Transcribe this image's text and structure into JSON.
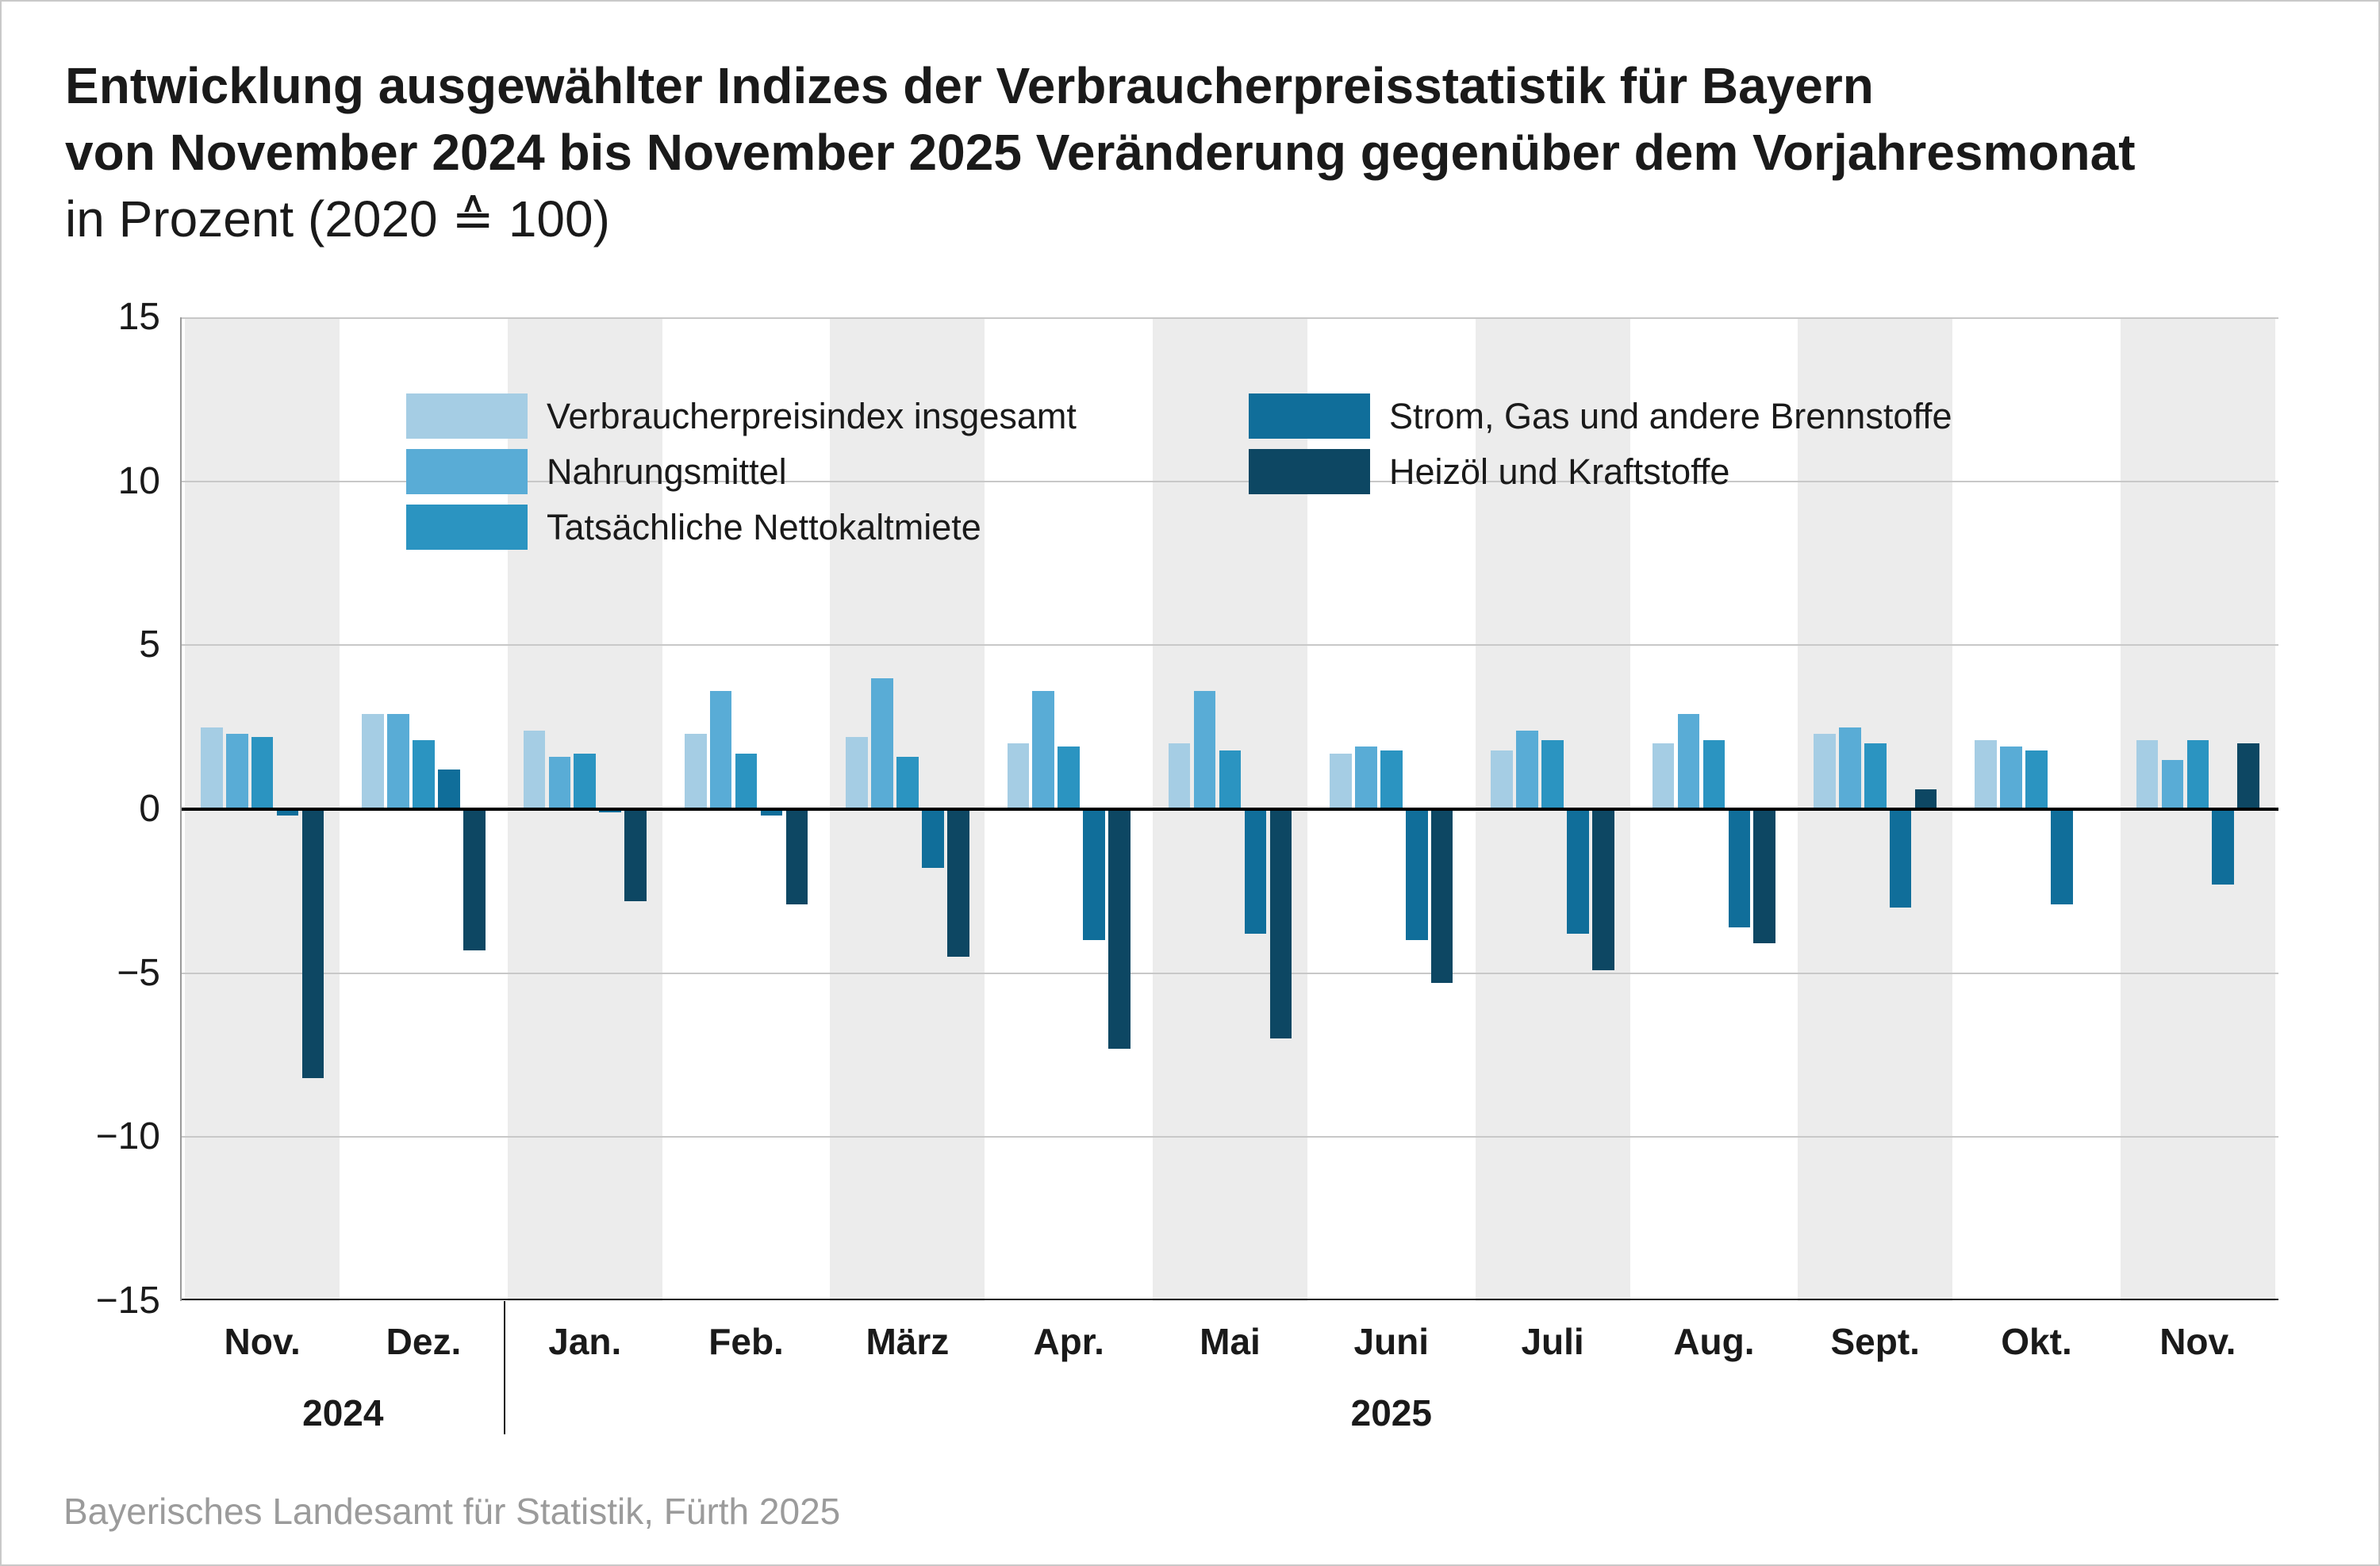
{
  "title": {
    "line1": "Entwicklung ausgewählter Indizes der Verbraucherpreisstatistik für Bayern",
    "line2": "von November 2024 bis November 2025 Veränderung gegenüber dem Vorjahresmonat",
    "line3": "in Prozent (2020 ≙ 100)"
  },
  "source": "Bayerisches Landesamt für Statistik, Fürth 2025",
  "chart_data": {
    "type": "bar",
    "categories": [
      "Nov.",
      "Dez.",
      "Jan.",
      "Feb.",
      "März",
      "Apr.",
      "Mai",
      "Juni",
      "Juli",
      "Aug.",
      "Sept.",
      "Okt.",
      "Nov."
    ],
    "year_groups": [
      {
        "label": "2024",
        "span": 2
      },
      {
        "label": "2025",
        "span": 11
      }
    ],
    "series": [
      {
        "name": "Verbraucherpreisindex insgesamt",
        "color": "#a5cde4",
        "values": [
          2.5,
          2.9,
          2.4,
          2.3,
          2.2,
          2.0,
          2.0,
          1.7,
          1.8,
          2.0,
          2.3,
          2.1,
          2.1
        ]
      },
      {
        "name": "Nahrungsmittel",
        "color": "#59acd6",
        "values": [
          2.3,
          2.9,
          1.6,
          3.6,
          4.0,
          3.6,
          3.6,
          1.9,
          2.4,
          2.9,
          2.5,
          1.9,
          1.5
        ]
      },
      {
        "name": "Tatsächliche Nettokaltmiete",
        "color": "#2b94c1",
        "values": [
          2.2,
          2.1,
          1.7,
          1.7,
          1.6,
          1.9,
          1.8,
          1.8,
          2.1,
          2.1,
          2.0,
          1.8,
          2.1
        ]
      },
      {
        "name": "Strom, Gas und andere Brennstoffe",
        "color": "#106e9a",
        "values": [
          -0.2,
          1.2,
          -0.1,
          -0.2,
          -1.8,
          -4.0,
          -3.8,
          -4.0,
          -3.8,
          -3.6,
          -3.0,
          -2.9,
          -2.3
        ]
      },
      {
        "name": "Heizöl und Kraftstoffe",
        "color": "#0d4763",
        "values": [
          -8.2,
          -4.3,
          -2.8,
          -2.9,
          -4.5,
          -7.3,
          -7.0,
          -5.3,
          -4.9,
          -4.1,
          0.6,
          0.0,
          2.0
        ]
      }
    ],
    "ylim": [
      -15,
      15
    ],
    "yticks": [
      15,
      10,
      5,
      0,
      -5,
      -10,
      -15
    ],
    "grid": true,
    "legend_position": "top-left-inside",
    "layout": {
      "stripe_color": "#ececec",
      "grid_color": "#c8c8c8",
      "axis_color": "#1a1a1a",
      "zero_line_color": "#000000",
      "background": "#ffffff"
    }
  }
}
